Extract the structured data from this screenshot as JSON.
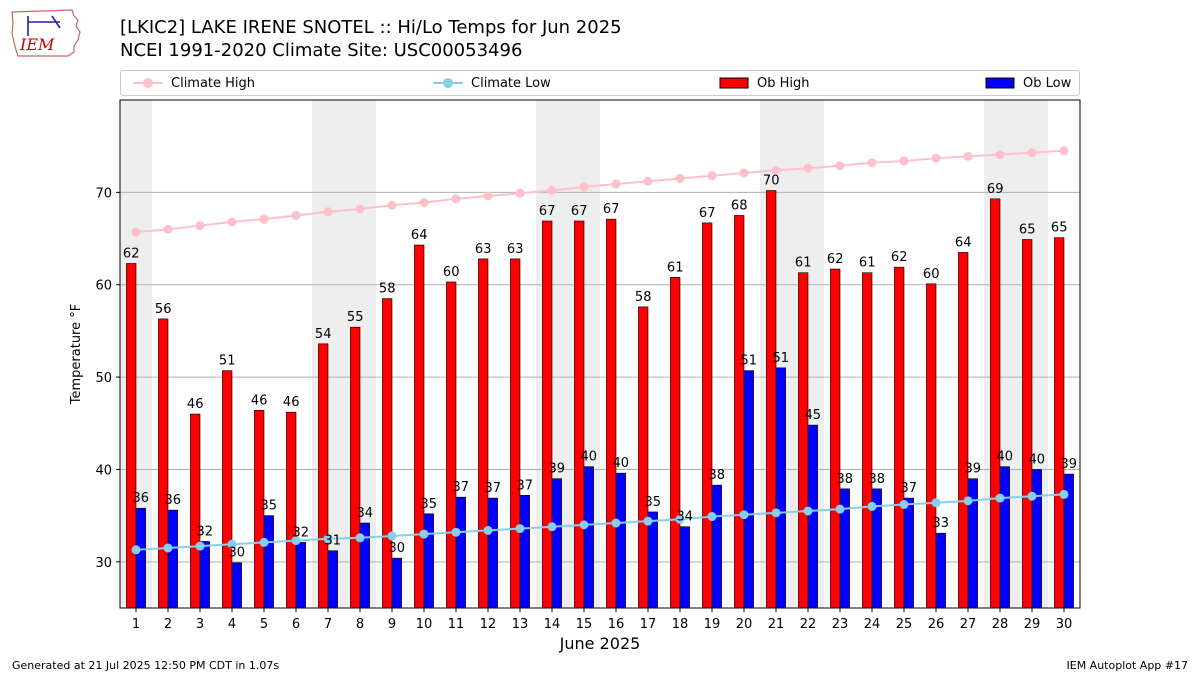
{
  "header": {
    "logo_text": "IEM",
    "title_line1": "[LKIC2] LAKE IRENE SNOTEL :: Hi/Lo Temps for Jun 2025",
    "title_line2": "NCEI 1991-2020 Climate Site: USC00053496"
  },
  "legend": {
    "climate_high": "Climate High",
    "climate_low": "Climate Low",
    "ob_high": "Ob High",
    "ob_low": "Ob Low"
  },
  "colors": {
    "ob_high": "#ff0000",
    "ob_low": "#0000ff",
    "climate_high": "#ffc0cb",
    "climate_low": "#87ceeb",
    "weekend_shade": "#eeeeee"
  },
  "chart_data": {
    "type": "bar",
    "xlabel": "June 2025",
    "ylabel": "Temperature °F",
    "ylim": [
      25,
      80
    ],
    "yticks": [
      30,
      40,
      50,
      60,
      70
    ],
    "grid": "horizontal",
    "legend_position": "top",
    "days": [
      1,
      2,
      3,
      4,
      5,
      6,
      7,
      8,
      9,
      10,
      11,
      12,
      13,
      14,
      15,
      16,
      17,
      18,
      19,
      20,
      21,
      22,
      23,
      24,
      25,
      26,
      27,
      28,
      29,
      30
    ],
    "shaded_days": [
      1,
      7,
      8,
      14,
      15,
      21,
      22,
      28,
      29
    ],
    "series": [
      {
        "name": "Ob High",
        "kind": "bar",
        "values": [
          62.3,
          56.3,
          46,
          50.7,
          46.4,
          46.2,
          53.6,
          55.4,
          58.5,
          64.3,
          60.3,
          62.8,
          62.8,
          66.9,
          66.9,
          67.1,
          57.6,
          60.8,
          66.7,
          67.5,
          70.2,
          61.3,
          61.7,
          61.3,
          61.9,
          60.1,
          63.5,
          69.3,
          64.9,
          65.1
        ],
        "labels": [
          "62",
          "56",
          "46",
          "51",
          "46",
          "46",
          "54",
          "55",
          "58",
          "64",
          "60",
          "63",
          "63",
          "67",
          "67",
          "67",
          "58",
          "61",
          "67",
          "68",
          "70",
          "61",
          "62",
          "61",
          "62",
          "60",
          "64",
          "69",
          "65",
          "65"
        ]
      },
      {
        "name": "Ob Low",
        "kind": "bar",
        "values": [
          35.8,
          35.6,
          32.2,
          29.9,
          35,
          32.1,
          31.2,
          34.2,
          30.4,
          35.2,
          37,
          36.9,
          37.2,
          39,
          40.3,
          39.6,
          35.4,
          33.8,
          38.3,
          50.7,
          51,
          44.8,
          37.9,
          37.9,
          36.9,
          33.1,
          39,
          40.3,
          40,
          39.5
        ],
        "labels": [
          "36",
          "36",
          "32",
          "30",
          "35",
          "32",
          "31",
          "34",
          "30",
          "35",
          "37",
          "37",
          "37",
          "39",
          "40",
          "40",
          "35",
          "34",
          "38",
          "51",
          "51",
          "45",
          "38",
          "38",
          "37",
          "33",
          "39",
          "40",
          "40",
          "39"
        ]
      },
      {
        "name": "Climate High",
        "kind": "line",
        "values": [
          65.7,
          66,
          66.4,
          66.8,
          67.1,
          67.5,
          67.9,
          68.2,
          68.6,
          68.9,
          69.3,
          69.6,
          69.9,
          70.2,
          70.6,
          70.9,
          71.2,
          71.5,
          71.8,
          72.1,
          72.4,
          72.6,
          72.9,
          73.2,
          73.4,
          73.7,
          73.9,
          74.1,
          74.3,
          74.5
        ]
      },
      {
        "name": "Climate Low",
        "kind": "line",
        "values": [
          31.3,
          31.5,
          31.7,
          31.9,
          32.1,
          32.3,
          32.5,
          32.6,
          32.8,
          33,
          33.2,
          33.4,
          33.6,
          33.8,
          34,
          34.2,
          34.4,
          34.6,
          34.9,
          35.1,
          35.3,
          35.5,
          35.7,
          36,
          36.2,
          36.4,
          36.6,
          36.9,
          37.1,
          37.3
        ]
      }
    ]
  },
  "footer": {
    "left": "Generated at 21 Jul 2025 12:50 PM CDT in 1.07s",
    "right": "IEM Autoplot App #17"
  }
}
